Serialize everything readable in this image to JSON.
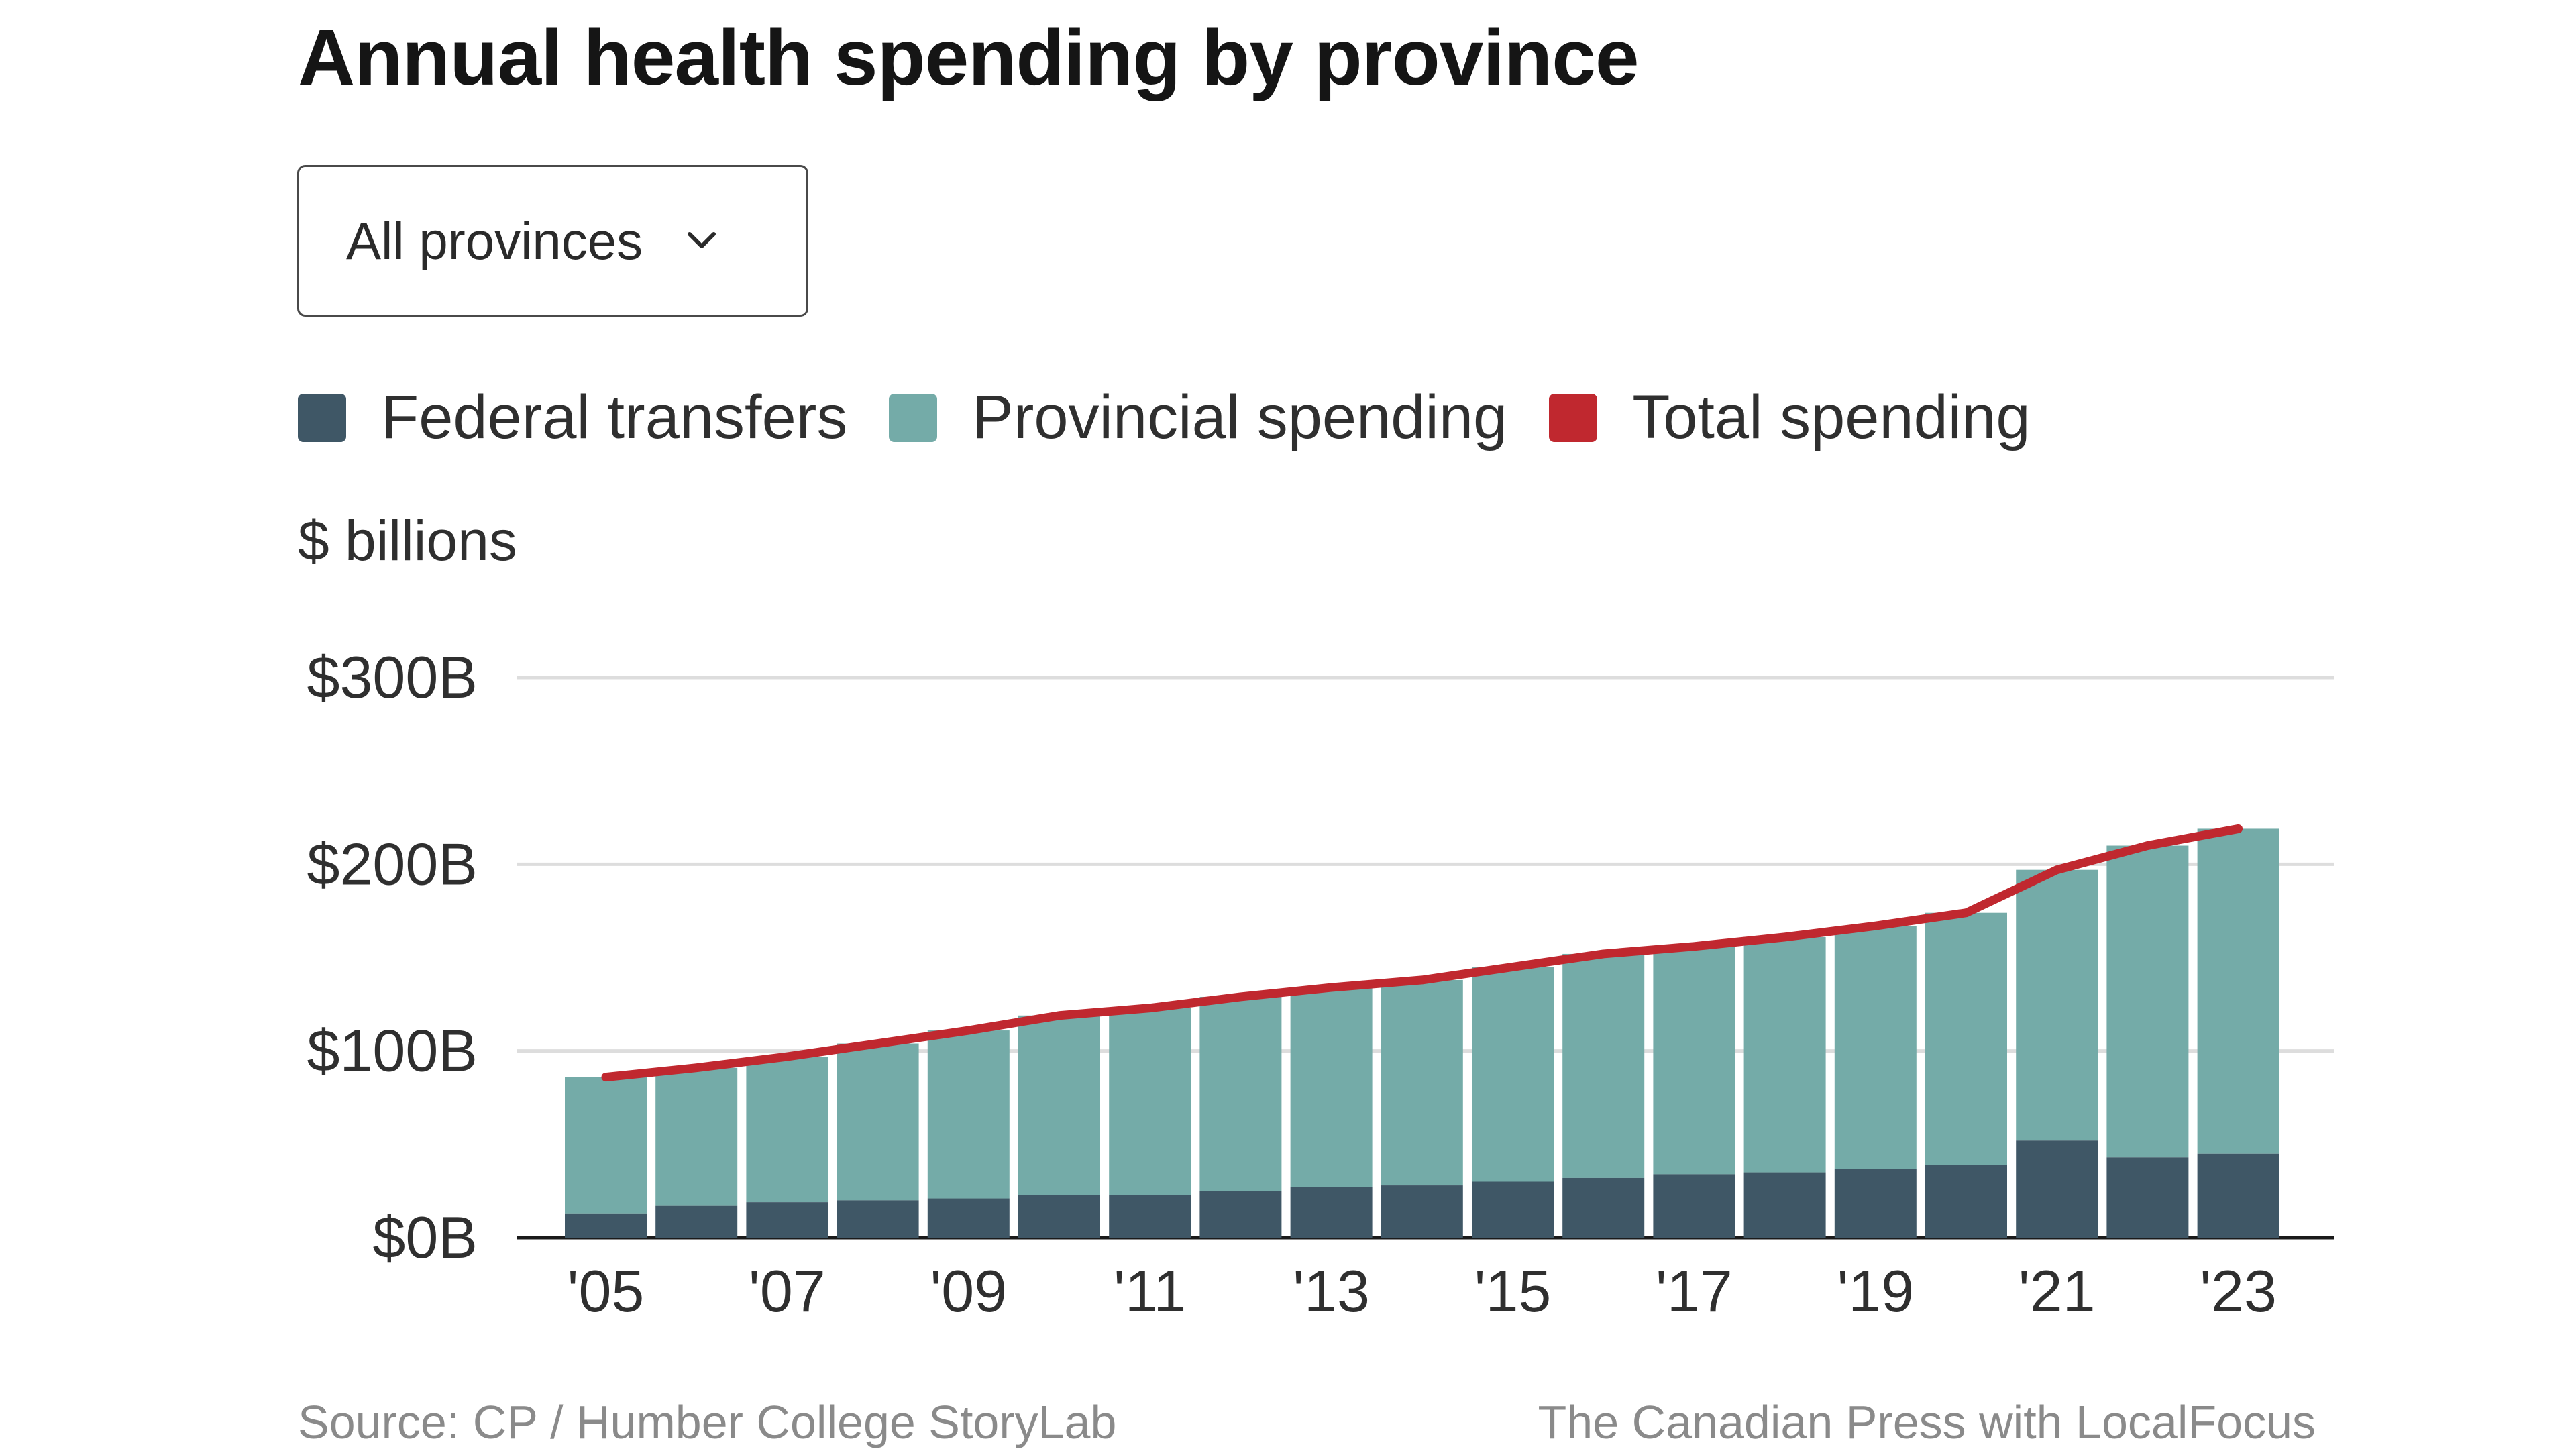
{
  "title": "Annual health spending by province",
  "dropdown": {
    "value": "All provinces",
    "icon": "chevron-down-icon"
  },
  "legend": [
    {
      "label": "Federal transfers",
      "color": "#3f5766"
    },
    {
      "label": "Provincial spending",
      "color": "#74aba8"
    },
    {
      "label": "Total spending",
      "color": "#c0282f"
    }
  ],
  "unit_label": "$ billions",
  "footer": {
    "source": "Source:  CP / Humber College StoryLab",
    "credit": "The Canadian Press with LocalFocus"
  },
  "chart_data": {
    "type": "bar",
    "stacked": true,
    "categories": [
      "2005",
      "2006",
      "2007",
      "2008",
      "2009",
      "2010",
      "2011",
      "2012",
      "2013",
      "2014",
      "2015",
      "2016",
      "2017",
      "2018",
      "2019",
      "2020",
      "2021",
      "2022",
      "2023"
    ],
    "x_tick_labels": [
      "'05",
      "",
      "'07",
      "",
      "'09",
      "",
      "'11",
      "",
      "'13",
      "",
      "'15",
      "",
      "'17",
      "",
      "'19",
      "",
      "'21",
      "",
      "'23"
    ],
    "series": [
      {
        "name": "Federal transfers",
        "type": "bar",
        "color": "#3f5766",
        "values": [
          13,
          17,
          19,
          20,
          21,
          23,
          23,
          25,
          27,
          28,
          30,
          32,
          34,
          35,
          37,
          39,
          52,
          43,
          45
        ]
      },
      {
        "name": "Provincial spending",
        "type": "bar",
        "color": "#74aba8",
        "values": [
          73,
          74,
          78,
          84,
          90,
          96,
          100,
          104,
          107,
          110,
          115,
          120,
          122,
          126,
          130,
          135,
          145,
          167,
          174
        ]
      },
      {
        "name": "Total spending",
        "type": "line",
        "color": "#c0282f",
        "values": [
          86,
          91,
          97,
          104,
          111,
          119,
          123,
          129,
          134,
          138,
          145,
          152,
          156,
          161,
          167,
          174,
          197,
          210,
          219
        ]
      }
    ],
    "y_ticks": [
      0,
      100,
      200,
      300
    ],
    "y_tick_labels": [
      "$0B",
      "$100B",
      "$200B",
      "$300B"
    ],
    "ylim": [
      0,
      300
    ],
    "grid": true,
    "legend_position": "top-left"
  }
}
